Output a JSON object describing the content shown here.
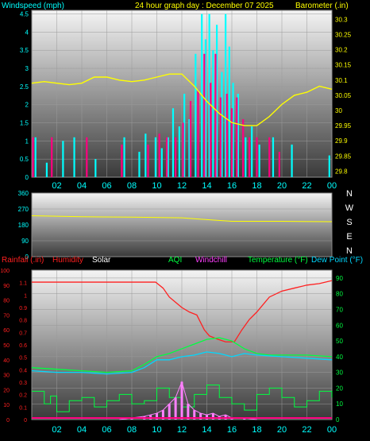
{
  "chart_data": [
    {
      "type": "line",
      "title": "24 hour graph day : December 07 2025",
      "left_label": "Windspeed (mph)",
      "right_label": "Barometer (.in)",
      "left_ticks": [
        "0",
        "0.5",
        "1",
        "1.5",
        "2",
        "2.5",
        "3",
        "3.5",
        "4",
        "4.5"
      ],
      "right_ticks": [
        "29.8",
        "29.85",
        "29.9",
        "29.95",
        "30",
        "30.05",
        "30.1",
        "30.15",
        "30.2",
        "30.25",
        "30.3"
      ],
      "x_ticks": [
        "02",
        "04",
        "06",
        "08",
        "10",
        "12",
        "14",
        "16",
        "18",
        "20",
        "22",
        "00"
      ],
      "ylim_left": [
        0,
        4.6
      ],
      "ylim_right": [
        29.78,
        30.33
      ],
      "series": [
        {
          "color": "#ffff00",
          "x": [
            0,
            1,
            2,
            3,
            4,
            5,
            6,
            7,
            8,
            9,
            10,
            11,
            12,
            13,
            14,
            15,
            16,
            17,
            18,
            19,
            20,
            21,
            22,
            23,
            24
          ],
          "values": [
            30.09,
            30.095,
            30.09,
            30.085,
            30.09,
            30.11,
            30.11,
            30.1,
            30.095,
            30.1,
            30.11,
            30.12,
            30.12,
            30.08,
            30.03,
            29.99,
            29.96,
            29.95,
            29.95,
            29.98,
            30.02,
            30.05,
            30.06,
            30.08,
            30.07
          ]
        },
        {
          "color": "#00ffff",
          "x": [
            0.3,
            1.2,
            2.5,
            3.4,
            5.1,
            7.4,
            8.6,
            9.1,
            9.9,
            10.4,
            10.9,
            11.3,
            11.8,
            12.2,
            12.6,
            13.1,
            13.6,
            13.9,
            14.2,
            14.5,
            14.8,
            15.2,
            15.5,
            15.8,
            16.1,
            16.5,
            17.1,
            17.6,
            18.2,
            19.3,
            20.8,
            23.8
          ],
          "values": [
            1.1,
            0.4,
            1.0,
            1.1,
            0.5,
            1.1,
            0.7,
            1.2,
            1.1,
            0.8,
            1.1,
            1.9,
            1.4,
            2.3,
            1.6,
            3.4,
            4.5,
            3.8,
            4.5,
            3.5,
            4.2,
            2.9,
            4.5,
            3.6,
            2.6,
            2.3,
            1.1,
            1.4,
            0.9,
            1.1,
            0.9,
            0.6
          ]
        },
        {
          "color": "#ff0080",
          "x": [
            0.1,
            1.6,
            4.4,
            7.2,
            9.3,
            10.2,
            10.8,
            11.5,
            12.1,
            12.7,
            13.3,
            13.8,
            14.3,
            14.7,
            15.1,
            15.6,
            16.0,
            16.4,
            16.9,
            17.4,
            18.0,
            19.0,
            19.8
          ],
          "values": [
            1.1,
            1.1,
            1.1,
            0.9,
            0.9,
            1.2,
            1.1,
            1.1,
            1.5,
            2.1,
            2.4,
            3.4,
            2.6,
            3.4,
            2.2,
            2.3,
            1.9,
            2.2,
            1.6,
            1.1,
            1.1,
            1.1,
            0.7
          ]
        }
      ]
    },
    {
      "type": "line",
      "y_ticks": [
        "360",
        "270",
        "180",
        "90",
        "0"
      ],
      "compass": [
        "N",
        "W",
        "S",
        "E",
        "N"
      ],
      "ylim": [
        0,
        360
      ],
      "series": [
        {
          "color": "#ffff00",
          "x": [
            0,
            4,
            8,
            12,
            14,
            16,
            20,
            24
          ],
          "values": [
            232,
            226,
            224,
            220,
            210,
            200,
            200,
            198
          ]
        }
      ]
    },
    {
      "type": "line",
      "legend": [
        "Rainfall (.in)",
        "Humidity",
        "Solar",
        "AQI",
        "Windchill",
        "Temperature (°F)",
        "Dew Point (°F)"
      ],
      "left_ticks": [
        "0",
        "0.1",
        "0.2",
        "0.3",
        "0.4",
        "0.5",
        "0.6",
        "0.7",
        "0.8",
        "0.9",
        "1",
        "1.1"
      ],
      "left2_ticks": [
        "0",
        "10",
        "20",
        "30",
        "40",
        "50",
        "60",
        "70",
        "80",
        "90",
        "100"
      ],
      "right_ticks": [
        "0",
        "10",
        "20",
        "30",
        "40",
        "50",
        "60",
        "70",
        "80",
        "90"
      ],
      "x_ticks": [
        "02",
        "04",
        "06",
        "08",
        "10",
        "12",
        "14",
        "16",
        "18",
        "20",
        "22",
        "00"
      ],
      "ylim_right": [
        0,
        95
      ],
      "series": [
        {
          "name": "Humidity",
          "color": "#ff2020",
          "x": [
            0,
            9.9,
            10.5,
            11,
            12,
            12.6,
            13.2,
            13.8,
            14.2,
            14.8,
            15.5,
            16.2,
            16.8,
            17.4,
            18,
            19,
            20,
            21,
            22,
            23,
            24
          ],
          "values": [
            92,
            92,
            88,
            82,
            75,
            72,
            70,
            60,
            56,
            54,
            52,
            52,
            60,
            67,
            72,
            82,
            86,
            88,
            90,
            91,
            93
          ]
        },
        {
          "name": "Temperature",
          "color": "#00ff40",
          "x": [
            0,
            2,
            4,
            6,
            8,
            9,
            10,
            11,
            12,
            13,
            14,
            15,
            16,
            17,
            18,
            19,
            20,
            22,
            24
          ],
          "values": [
            33,
            32,
            31,
            30,
            31,
            35,
            40,
            42,
            45,
            48,
            51,
            52,
            50,
            45,
            42,
            41,
            41,
            41,
            40
          ]
        },
        {
          "name": "Dew Point",
          "color": "#00d8ff",
          "x": [
            0,
            2,
            4,
            6,
            8,
            9,
            10,
            11,
            12,
            13,
            14,
            15,
            16,
            17,
            18,
            20,
            22,
            24
          ],
          "values": [
            31,
            30,
            30,
            29,
            30,
            33,
            38,
            38,
            40,
            41,
            43,
            42,
            40,
            42,
            41,
            40,
            39,
            38
          ]
        },
        {
          "name": "AQI",
          "color": "#00ff40",
          "x": [
            0,
            1,
            1.5,
            2,
            3,
            4,
            5,
            6,
            7,
            8,
            9,
            10,
            11,
            12,
            13,
            14,
            15,
            16,
            17,
            18,
            19,
            20,
            21,
            22,
            23,
            24
          ],
          "values": [
            18,
            10,
            15,
            5,
            12,
            14,
            8,
            12,
            16,
            10,
            12,
            20,
            14,
            8,
            16,
            22,
            14,
            10,
            6,
            16,
            20,
            14,
            8,
            12,
            18,
            14
          ]
        },
        {
          "name": "Solar",
          "color": "#ff80ff",
          "x": [
            7,
            8,
            9,
            9.5,
            10,
            10.5,
            11,
            11.5,
            12,
            12.5,
            13,
            13.5,
            14,
            14.5,
            15,
            15.5,
            16,
            17,
            18
          ],
          "values": [
            0,
            1,
            2,
            3,
            4,
            6,
            10,
            14,
            24,
            10,
            6,
            4,
            3,
            4,
            2,
            3,
            1,
            1,
            0
          ]
        },
        {
          "name": "Rainfall",
          "color": "#ff0080",
          "x": [
            0,
            24
          ],
          "values": [
            0,
            0
          ]
        }
      ]
    }
  ]
}
